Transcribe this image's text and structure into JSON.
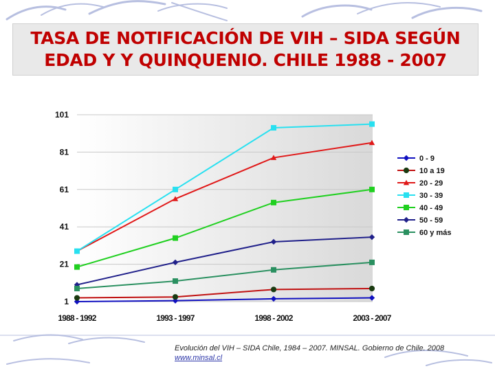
{
  "title": {
    "line1": "TASA DE NOTIFICACIÓN DE VIH – SIDA SEGÚN",
    "line2": "EDAD Y Y QUINQUENIO. CHILE 1988 - 2007"
  },
  "caption": {
    "text": "Evolución del VIH – SIDA Chile, 1984 – 2007. MINSAL. Gobierno de Chile. 2008",
    "link": "www.minsal.cl"
  },
  "chart_data": {
    "type": "line",
    "title": "",
    "xlabel": "",
    "ylabel": "",
    "categories": [
      "1988 - 1992",
      "1993 - 1997",
      "1998 - 2002",
      "2003 - 2007"
    ],
    "ylim": [
      1,
      101
    ],
    "yticks": [
      1,
      21,
      41,
      61,
      81,
      101
    ],
    "legend_position": "right",
    "series": [
      {
        "name": "0 - 9",
        "color": "#1010c0",
        "marker": "diamond",
        "values": [
          1,
          1.5,
          2.5,
          3
        ]
      },
      {
        "name": "10 a 19",
        "color": "#c01010",
        "marker": "circle",
        "values": [
          3,
          3.5,
          7.5,
          8
        ]
      },
      {
        "name": "20 - 29",
        "color": "#e01818",
        "marker": "triangle",
        "values": [
          28,
          56,
          78,
          86
        ]
      },
      {
        "name": "30 - 39",
        "color": "#28e0f0",
        "marker": "square",
        "values": [
          28,
          61,
          94,
          96
        ]
      },
      {
        "name": "40 - 49",
        "color": "#20d020",
        "marker": "square",
        "values": [
          19.5,
          35,
          54,
          61
        ]
      },
      {
        "name": "50 - 59",
        "color": "#20208a",
        "marker": "diamond",
        "values": [
          10,
          22,
          33,
          35.5
        ]
      },
      {
        "name": "60 y más",
        "color": "#2a9060",
        "marker": "square",
        "values": [
          8,
          12,
          18,
          22
        ]
      }
    ]
  }
}
